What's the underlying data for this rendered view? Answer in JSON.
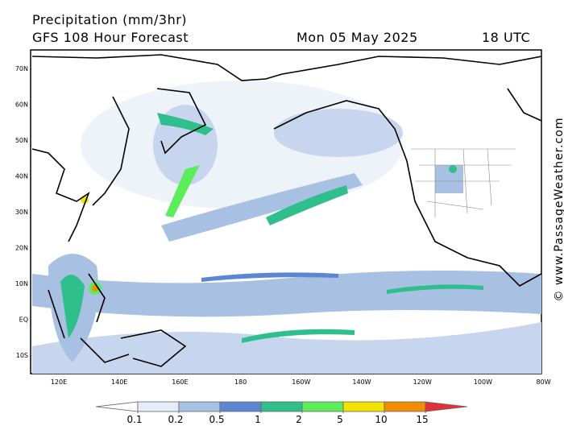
{
  "header": {
    "title": "Precipitation (mm/3hr)",
    "subtitle": "GFS 108 Hour Forecast",
    "date": "Mon 05 May 2025",
    "time": "18 UTC"
  },
  "map": {
    "lat_labels": [
      "70N",
      "60N",
      "50N",
      "40N",
      "30N",
      "20N",
      "10N",
      "EQ",
      "10S"
    ],
    "lon_labels": [
      "120E",
      "140E",
      "160E",
      "180",
      "160W",
      "140W",
      "120W",
      "100W",
      "80W"
    ]
  },
  "legend": {
    "ticks": [
      0.1,
      0.2,
      0.5,
      1,
      2,
      5,
      10,
      15
    ],
    "colors": [
      "#ffffff",
      "#e4ecf7",
      "#a8c0e2",
      "#5c86d2",
      "#2fbf8c",
      "#5ced5a",
      "#f2e200",
      "#f28c00",
      "#e2303a"
    ]
  },
  "watermark": "© www.PassageWeather.com"
}
